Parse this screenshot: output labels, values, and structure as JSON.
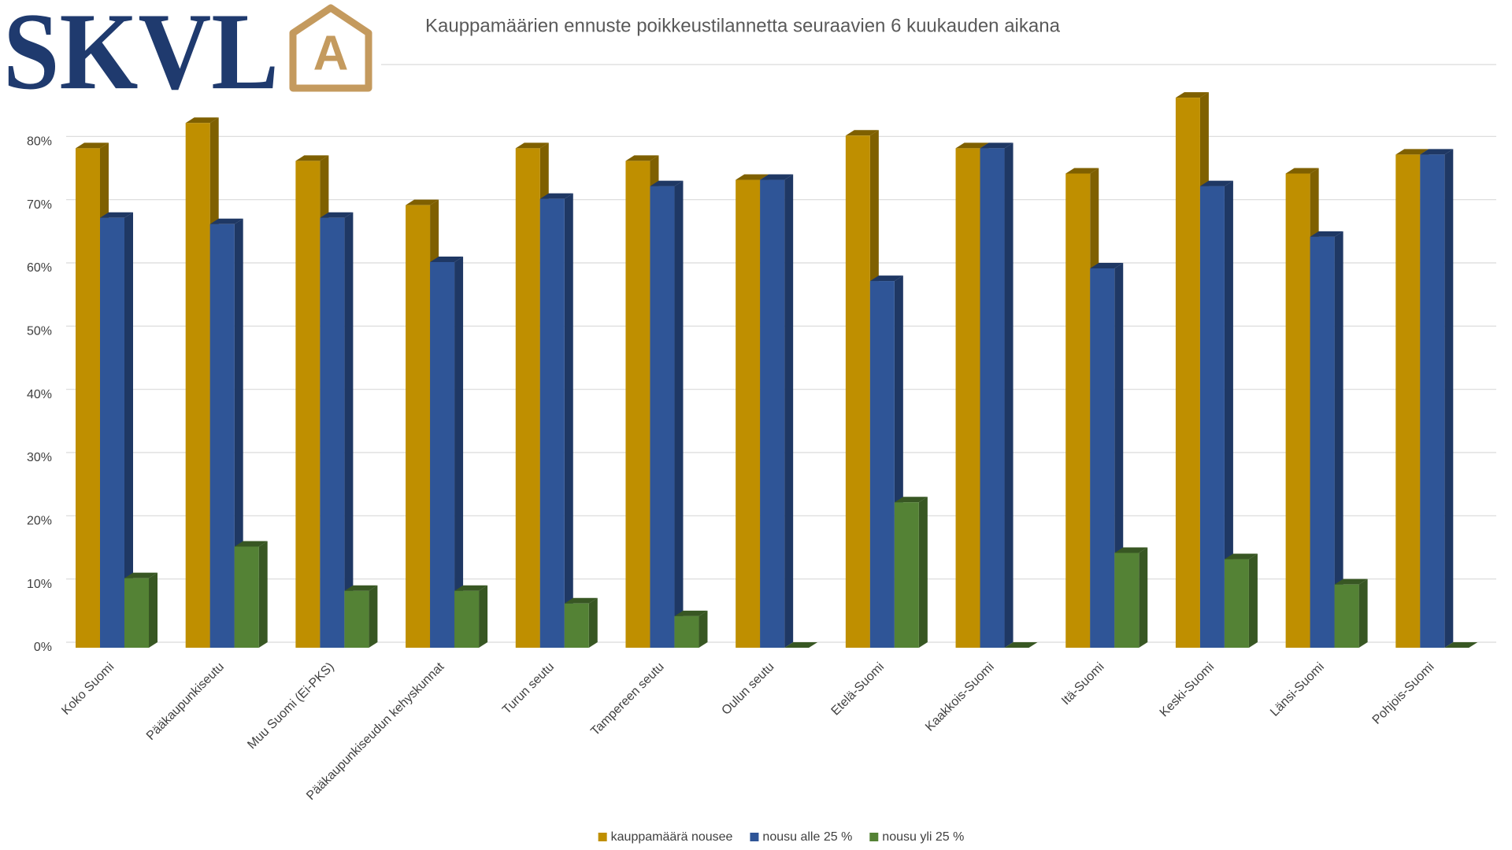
{
  "logo": {
    "text": "SKVL",
    "letter": "A"
  },
  "chart_data": {
    "type": "bar3d",
    "title": "Kauppamäärien ennuste poikkeustilannetta seuraavien 6 kuukauden aikana",
    "categories": [
      "Koko Suomi",
      "Pääkaupunkiseutu",
      "Muu Suomi (Ei-PKS)",
      "Pääkaupunkiseudun kehyskunnat",
      "Turun seutu",
      "Tampereen seutu",
      "Oulun seutu",
      "Etelä-Suomi",
      "Kaakkois-Suomi",
      "Itä-Suomi",
      "Keski-Suomi",
      "Länsi-Suomi",
      "Pohjois-Suomi"
    ],
    "series": [
      {
        "name": "kauppamäärä nousee",
        "color": "#bf8f00",
        "side": "#7f6000",
        "values": [
          79,
          83,
          77,
          70,
          79,
          77,
          74,
          81,
          79,
          75,
          87,
          75,
          78
        ]
      },
      {
        "name": "nousu alle 25 %",
        "color": "#2f5597",
        "side": "#1f3864",
        "values": [
          68,
          67,
          68,
          61,
          71,
          73,
          74,
          58,
          79,
          60,
          73,
          65,
          78
        ]
      },
      {
        "name": "nousu yli 25 %",
        "color": "#548235",
        "side": "#385723",
        "values": [
          11,
          16,
          9,
          9,
          7,
          5,
          0,
          23,
          0,
          15,
          14,
          10,
          0
        ]
      }
    ],
    "ylim": [
      0,
      90
    ],
    "yticks": [
      {
        "value": 0,
        "label": "0%"
      },
      {
        "value": 10,
        "label": "10%"
      },
      {
        "value": 20,
        "label": "20%"
      },
      {
        "value": 30,
        "label": "30%"
      },
      {
        "value": 40,
        "label": "40%"
      },
      {
        "value": 50,
        "label": "50%"
      },
      {
        "value": 60,
        "label": "60%"
      },
      {
        "value": 70,
        "label": "70%"
      },
      {
        "value": 80,
        "label": "80%"
      }
    ],
    "grid": true,
    "legend": "bottom"
  }
}
